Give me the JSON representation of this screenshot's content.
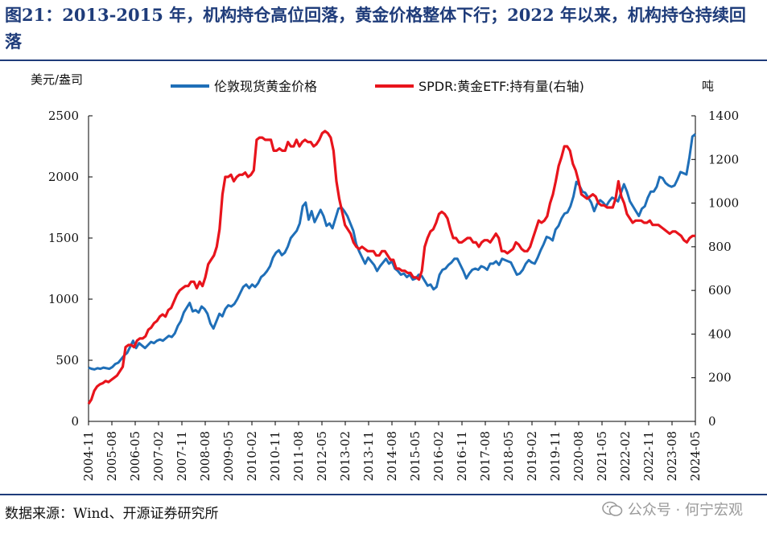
{
  "title": "图21：2013-2015 年，机构持仓高位回落，黄金价格整体下行；2022 年以来，机构持仓持续回落",
  "source": "数据来源：Wind、开源证券研究所",
  "watermark": "公众号 · 何宁宏观",
  "chart_data": {
    "type": "line",
    "left_unit": "美元/盎司",
    "right_unit": "吨",
    "y_left": {
      "min": 0,
      "max": 2500,
      "ticks": [
        "0",
        "500",
        "1000",
        "1500",
        "2000",
        "2500"
      ]
    },
    "y_right": {
      "min": 0,
      "max": 1400,
      "ticks": [
        "0",
        "200",
        "400",
        "600",
        "800",
        "1000",
        "1200",
        "1400"
      ]
    },
    "x_ticks": [
      "2004-11",
      "2005-08",
      "2006-05",
      "2007-02",
      "2007-11",
      "2008-08",
      "2009-05",
      "2010-02",
      "2010-11",
      "2011-08",
      "2012-05",
      "2013-02",
      "2013-11",
      "2014-08",
      "2015-05",
      "2016-02",
      "2016-11",
      "2017-08",
      "2018-05",
      "2019-02",
      "2019-11",
      "2020-08",
      "2021-05",
      "2022-02",
      "2022-11",
      "2023-08",
      "2024-05"
    ],
    "series": [
      {
        "name": "伦敦现货黄金价格",
        "axis": "left",
        "color": "#1f6fb8",
        "values": [
          440,
          430,
          425,
          435,
          430,
          440,
          435,
          430,
          445,
          470,
          480,
          510,
          540,
          560,
          610,
          660,
          600,
          640,
          620,
          600,
          625,
          650,
          640,
          660,
          670,
          660,
          680,
          700,
          690,
          720,
          780,
          820,
          890,
          930,
          970,
          900,
          910,
          890,
          940,
          920,
          880,
          800,
          760,
          820,
          880,
          860,
          920,
          950,
          940,
          960,
          1000,
          1050,
          1100,
          1120,
          1090,
          1120,
          1100,
          1130,
          1180,
          1200,
          1230,
          1270,
          1340,
          1380,
          1400,
          1360,
          1380,
          1430,
          1500,
          1530,
          1560,
          1620,
          1760,
          1790,
          1650,
          1720,
          1630,
          1680,
          1730,
          1680,
          1600,
          1620,
          1580,
          1660,
          1740,
          1750,
          1720,
          1680,
          1620,
          1560,
          1450,
          1390,
          1340,
          1290,
          1340,
          1310,
          1280,
          1230,
          1270,
          1300,
          1330,
          1290,
          1310,
          1250,
          1230,
          1200,
          1210,
          1180,
          1200,
          1160,
          1170,
          1200,
          1190,
          1150,
          1110,
          1120,
          1080,
          1100,
          1200,
          1240,
          1250,
          1280,
          1300,
          1330,
          1330,
          1280,
          1230,
          1170,
          1210,
          1240,
          1250,
          1240,
          1270,
          1260,
          1240,
          1290,
          1290,
          1310,
          1280,
          1330,
          1320,
          1310,
          1300,
          1250,
          1200,
          1210,
          1240,
          1290,
          1320,
          1300,
          1290,
          1340,
          1400,
          1450,
          1510,
          1500,
          1480,
          1570,
          1600,
          1660,
          1700,
          1710,
          1760,
          1840,
          1960,
          1930,
          1880,
          1870,
          1830,
          1790,
          1720,
          1780,
          1810,
          1790,
          1760,
          1800,
          1830,
          1820,
          1800,
          1870,
          1940,
          1880,
          1800,
          1760,
          1720,
          1680,
          1740,
          1760,
          1830,
          1880,
          1880,
          1920,
          2000,
          1990,
          1950,
          1930,
          1920,
          1930,
          1980,
          2040,
          2030,
          2020,
          2160,
          2330,
          2350
        ]
      },
      {
        "name": "SPDR:黄金ETF:持有量(右轴)",
        "axis": "right",
        "color": "#e8141c",
        "values": [
          80,
          100,
          140,
          160,
          170,
          175,
          185,
          180,
          190,
          200,
          210,
          230,
          250,
          340,
          350,
          350,
          340,
          370,
          380,
          380,
          390,
          420,
          430,
          450,
          460,
          480,
          490,
          480,
          510,
          520,
          550,
          580,
          600,
          610,
          620,
          620,
          640,
          640,
          610,
          640,
          620,
          660,
          720,
          740,
          760,
          800,
          880,
          1040,
          1120,
          1120,
          1130,
          1100,
          1120,
          1130,
          1130,
          1140,
          1120,
          1130,
          1150,
          1290,
          1300,
          1300,
          1290,
          1290,
          1290,
          1240,
          1240,
          1250,
          1240,
          1240,
          1280,
          1260,
          1260,
          1290,
          1260,
          1280,
          1290,
          1280,
          1280,
          1260,
          1270,
          1290,
          1320,
          1330,
          1320,
          1300,
          1240,
          1100,
          1020,
          960,
          900,
          880,
          860,
          820,
          800,
          790,
          800,
          790,
          780,
          780,
          780,
          760,
          760,
          780,
          780,
          760,
          740,
          740,
          700,
          700,
          690,
          690,
          680,
          680,
          660,
          660,
          650,
          690,
          800,
          840,
          870,
          880,
          910,
          950,
          960,
          950,
          930,
          880,
          840,
          840,
          820,
          820,
          830,
          840,
          840,
          820,
          820,
          800,
          820,
          830,
          830,
          820,
          840,
          860,
          840,
          780,
          780,
          770,
          780,
          790,
          820,
          810,
          790,
          780,
          780,
          800,
          840,
          880,
          920,
          910,
          920,
          940,
          1000,
          1040,
          1100,
          1170,
          1210,
          1260,
          1260,
          1240,
          1180,
          1150,
          1100,
          1040,
          1030,
          1020,
          1030,
          1040,
          1030,
          1000,
          990,
          990,
          980,
          980,
          980,
          1020,
          1100,
          1030,
          1000,
          950,
          930,
          910,
          920,
          920,
          920,
          910,
          910,
          920,
          900,
          900,
          900,
          890,
          880,
          870,
          860,
          870,
          870,
          860,
          850,
          830,
          820,
          840,
          850,
          850
        ]
      }
    ],
    "grid": false,
    "legend": "top"
  }
}
